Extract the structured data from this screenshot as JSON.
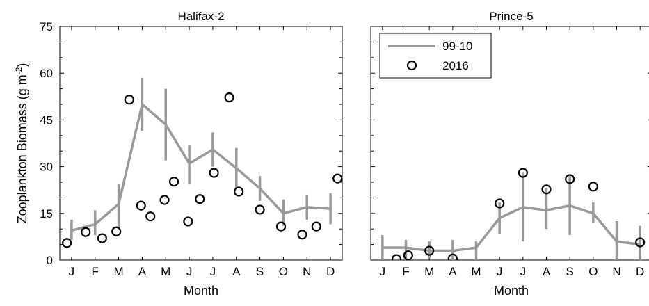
{
  "chart_data": [
    {
      "type": "line",
      "title": "Halifax-2",
      "xlabel": "Month",
      "ylabel": "Zooplankton Biomass (g m-2)",
      "ylabel_parts": {
        "main": "Zooplankton Biomass (g m",
        "sup": "-2",
        "close": ")"
      },
      "ylim": [
        0,
        75
      ],
      "yticks": [
        0,
        15,
        30,
        45,
        60,
        75
      ],
      "xlim": [
        0.5,
        12.5
      ],
      "month_ticks": [
        "J",
        "F",
        "M",
        "A",
        "M",
        "J",
        "J",
        "A",
        "S",
        "O",
        "N",
        "D"
      ],
      "series": [
        {
          "name": "99-10",
          "kind": "line-errorbar",
          "color": "#999999",
          "x": [
            1,
            2,
            3,
            4,
            5,
            6,
            7,
            8,
            9,
            10,
            11,
            12
          ],
          "values": [
            9.5,
            11.5,
            18.0,
            50.0,
            43.5,
            31.0,
            35.5,
            29.5,
            23.0,
            15.0,
            17.0,
            16.5
          ],
          "err_low": [
            6.5,
            8.0,
            10.0,
            41.5,
            32.0,
            24.5,
            30.0,
            23.0,
            19.0,
            11.0,
            13.0,
            11.5
          ],
          "err_high": [
            13.0,
            16.0,
            24.5,
            58.5,
            55.0,
            37.0,
            41.0,
            36.0,
            27.0,
            19.5,
            21.0,
            21.5
          ]
        },
        {
          "name": "2016",
          "kind": "scatter-open-circle",
          "color": "#000000",
          "points": [
            [
              0.8,
              5.5
            ],
            [
              1.6,
              9.0
            ],
            [
              2.3,
              7.0
            ],
            [
              2.9,
              9.2
            ],
            [
              3.45,
              51.5
            ],
            [
              3.95,
              17.5
            ],
            [
              4.35,
              14.0
            ],
            [
              4.95,
              19.3
            ],
            [
              5.35,
              25.2
            ],
            [
              5.95,
              12.4
            ],
            [
              6.45,
              19.6
            ],
            [
              7.05,
              28.0
            ],
            [
              7.7,
              52.2
            ],
            [
              8.1,
              22.0
            ],
            [
              9.0,
              16.2
            ],
            [
              9.9,
              10.8
            ],
            [
              10.8,
              8.2
            ],
            [
              11.4,
              10.8
            ],
            [
              12.3,
              26.2
            ]
          ]
        }
      ]
    },
    {
      "type": "line",
      "title": "Prince-5",
      "xlabel": "Month",
      "ylim": [
        0,
        75
      ],
      "yticks": [
        0,
        15,
        30,
        45,
        60,
        75
      ],
      "xlim": [
        0.5,
        12.5
      ],
      "month_ticks": [
        "J",
        "F",
        "M",
        "A",
        "M",
        "J",
        "J",
        "A",
        "S",
        "O",
        "N",
        "D"
      ],
      "legend": {
        "placement": "top-left",
        "entries": [
          {
            "label": "99-10",
            "marker": "line",
            "color": "#999999"
          },
          {
            "label": "2016",
            "marker": "open-circle",
            "color": "#000000"
          }
        ]
      },
      "series": [
        {
          "name": "99-10",
          "kind": "line-errorbar",
          "color": "#999999",
          "x": [
            1,
            2,
            3,
            4,
            5,
            6,
            7,
            8,
            9,
            10,
            11,
            12
          ],
          "values": [
            4.0,
            4.0,
            3.0,
            3.0,
            4.0,
            13.5,
            17.0,
            16.0,
            17.5,
            15.0,
            6.0,
            5.0
          ],
          "err_low": [
            0.0,
            0.5,
            0.5,
            0.0,
            0.0,
            8.5,
            6.0,
            10.0,
            8.0,
            12.0,
            0.0,
            0.0
          ],
          "err_high": [
            8.0,
            6.5,
            6.0,
            6.5,
            6.0,
            18.5,
            28.0,
            23.0,
            27.0,
            18.5,
            12.5,
            11.0
          ]
        },
        {
          "name": "2016",
          "kind": "scatter-open-circle",
          "color": "#000000",
          "points": [
            [
              1.6,
              0.3
            ],
            [
              2.1,
              1.5
            ],
            [
              3.0,
              3.0
            ],
            [
              4.0,
              0.5
            ],
            [
              6.0,
              18.2
            ],
            [
              7.0,
              28.0
            ],
            [
              8.0,
              22.7
            ],
            [
              9.0,
              26.0
            ],
            [
              10.0,
              23.6
            ],
            [
              12.0,
              5.7
            ]
          ]
        }
      ]
    }
  ]
}
